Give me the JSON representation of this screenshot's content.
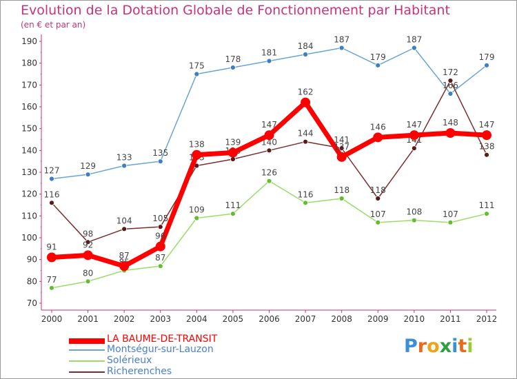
{
  "chart_data": {
    "type": "line",
    "title": "Evolution de la Dotation Globale de Fonctionnement par Habitant",
    "subtitle": "(en € et par an)",
    "xlabel": "",
    "ylabel": "",
    "ylim": [
      70,
      190
    ],
    "yticks": [
      70,
      80,
      90,
      100,
      110,
      120,
      130,
      140,
      150,
      160,
      170,
      180,
      190
    ],
    "categories": [
      "2000",
      "2001",
      "2002",
      "2003",
      "2004",
      "2005",
      "2006",
      "2007",
      "2008",
      "2009",
      "2010",
      "2011",
      "2012"
    ],
    "series": [
      {
        "name": "Montségur-sur-Lauzon",
        "color": "#6aa3d5",
        "values": [
          127,
          129,
          133,
          135,
          175,
          178,
          181,
          184,
          187,
          179,
          187,
          166,
          179
        ]
      },
      {
        "name": "Solérieux",
        "color": "#99dd66",
        "values": [
          77,
          80,
          85,
          87,
          109,
          111,
          126,
          116,
          118,
          107,
          108,
          107,
          111
        ]
      },
      {
        "name": "Richerenches",
        "color": "#7a2e2e",
        "values": [
          116,
          98,
          104,
          105,
          133,
          136,
          140,
          144,
          141,
          118,
          141,
          172,
          138
        ]
      },
      {
        "name": "LA BAUME-DE-TRANSIT",
        "color": "#ff0000",
        "values": [
          91,
          92,
          87,
          96,
          138,
          139,
          147,
          162,
          137,
          146,
          147,
          148,
          147
        ]
      }
    ],
    "legend": [
      "LA BAUME-DE-TRANSIT",
      "Montségur-sur-Lauzon",
      "Solérieux",
      "Richerenches"
    ],
    "legend_position": "bottom-left",
    "grid": false
  },
  "legend_colors": {
    "LA BAUME-DE-TRANSIT": "#ff0000",
    "Montségur-sur-Lauzon": "#6aa3d5",
    "Solérieux": "#99dd66",
    "Richerenches": "#7a2e2e"
  },
  "logo": {
    "text": "Proxiti"
  }
}
